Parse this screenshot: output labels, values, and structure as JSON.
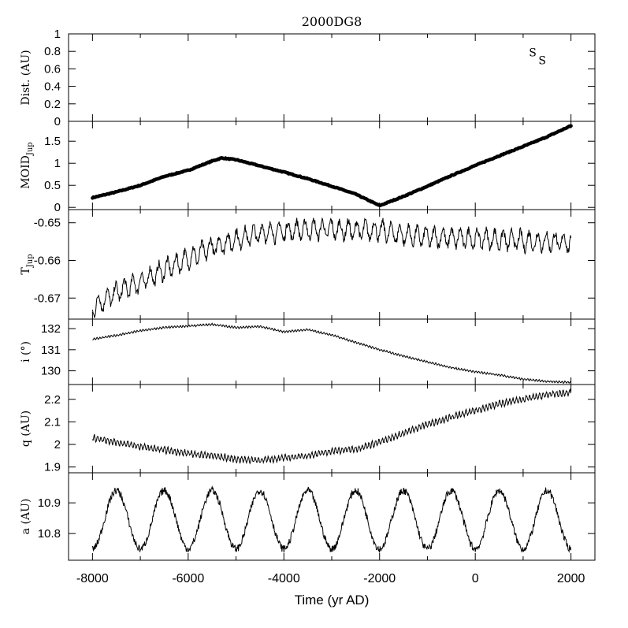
{
  "chart_data": [
    {
      "type": "scatter",
      "title": "2000DG8",
      "ylabel": "Dist. (AU)",
      "ylim": [
        0,
        1
      ],
      "yticks": [
        "0",
        "0.2",
        "0.4",
        "0.6",
        "0.8",
        "1"
      ],
      "points": [
        {
          "x": 1200,
          "y": 0.79,
          "label": "S"
        },
        {
          "x": 1400,
          "y": 0.7,
          "label": "S"
        }
      ]
    },
    {
      "type": "line",
      "ylabel": "MOID",
      "ylabel_sub": "Jup",
      "ylim": [
        -0.05,
        1.95
      ],
      "yticks": [
        "0",
        "0.5",
        "1",
        "1.5"
      ],
      "style": "thick",
      "x": [
        -8000,
        -7500,
        -7000,
        -6500,
        -6000,
        -5500,
        -5300,
        -5000,
        -4500,
        -4000,
        -3500,
        -3000,
        -2500,
        -2000,
        -1500,
        -1000,
        -500,
        0,
        500,
        1000,
        1500,
        2000
      ],
      "y": [
        0.22,
        0.35,
        0.5,
        0.7,
        0.84,
        1.05,
        1.12,
        1.08,
        0.94,
        0.8,
        0.65,
        0.48,
        0.3,
        0.04,
        0.25,
        0.48,
        0.72,
        0.95,
        1.17,
        1.38,
        1.6,
        1.85
      ]
    },
    {
      "type": "line",
      "ylabel": "T",
      "ylabel_sub": "Jup",
      "ylim": [
        -0.6756,
        -0.6465
      ],
      "yticks": [
        "-0.67",
        "-0.66",
        "-0.65"
      ],
      "x": [
        -8000,
        -7500,
        -7000,
        -6500,
        -6000,
        -5500,
        -5000,
        -4500,
        -4000,
        -3500,
        -3000,
        -2500,
        -2000,
        -1500,
        -1000,
        -500,
        0,
        500,
        1000,
        1500,
        2000
      ],
      "y": [
        -0.6725,
        -0.6685,
        -0.6658,
        -0.6625,
        -0.6595,
        -0.6565,
        -0.6545,
        -0.6528,
        -0.6522,
        -0.6518,
        -0.6517,
        -0.652,
        -0.652,
        -0.6532,
        -0.6538,
        -0.654,
        -0.6542,
        -0.6545,
        -0.6548,
        -0.655,
        -0.6552
      ],
      "oscillation_amplitude": 0.0024,
      "oscillation_period_yr": 180
    },
    {
      "type": "line",
      "ylabel": "i (°)",
      "ylim": [
        129.35,
        132.45
      ],
      "yticks": [
        "130",
        "131",
        "132"
      ],
      "x": [
        -8000,
        -7500,
        -7000,
        -6500,
        -6000,
        -5500,
        -5000,
        -4500,
        -4000,
        -3500,
        -3000,
        -2500,
        -2000,
        -1500,
        -1000,
        -500,
        0,
        500,
        1000,
        1500,
        2000
      ],
      "y": [
        131.5,
        131.68,
        131.9,
        132.05,
        132.12,
        132.2,
        132.05,
        132.1,
        131.85,
        131.95,
        131.7,
        131.35,
        131.0,
        130.7,
        130.42,
        130.15,
        129.95,
        129.8,
        129.6,
        129.5,
        129.45
      ],
      "oscillation_amplitude": 0.04,
      "oscillation_period_yr": 60
    },
    {
      "type": "line",
      "ylabel": "q (AU)",
      "ylim": [
        1.8745,
        2.2655
      ],
      "yticks": [
        "1.9",
        "2",
        "2.1",
        "2.2"
      ],
      "x": [
        -8000,
        -7500,
        -7000,
        -6500,
        -6000,
        -5500,
        -5000,
        -4500,
        -4000,
        -3500,
        -3000,
        -2500,
        -2000,
        -1500,
        -1000,
        -500,
        0,
        500,
        1000,
        1500,
        2000
      ],
      "y": [
        2.03,
        2.01,
        1.99,
        1.975,
        1.96,
        1.95,
        1.935,
        1.93,
        1.94,
        1.95,
        1.97,
        1.98,
        2.01,
        2.05,
        2.09,
        2.12,
        2.15,
        2.18,
        2.2,
        2.22,
        2.23
      ],
      "oscillation_amplitude": 0.012,
      "oscillation_period_yr": 70
    },
    {
      "type": "line",
      "ylabel": "a (AU)",
      "ylim": [
        10.713,
        10.998
      ],
      "yticks": [
        "10.8",
        "10.9"
      ],
      "xlabel": "Time (yr AD)",
      "xlim": [
        -8500,
        2500
      ],
      "xticks": [
        "-8000",
        "-6000",
        "-4000",
        "-2000",
        "0",
        "2000"
      ],
      "mean": 10.845,
      "amplitude": 0.095,
      "period_yr": 1000,
      "phase_start_yr": -7750,
      "noise_amplitude": 0.012,
      "x_range": [
        -8000,
        2000
      ]
    }
  ]
}
